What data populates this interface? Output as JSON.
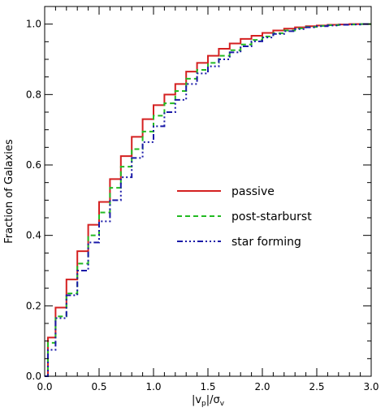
{
  "chart_data": {
    "type": "line",
    "title": "",
    "xlabel": "|v_p|/σ_v",
    "xlabel_parts": {
      "open_bar": "|v",
      "sub_p": "p",
      "close_bar": "|/σ",
      "sub_v": "v"
    },
    "ylabel": "Fraction of Galaxies",
    "xlim": [
      0.0,
      3.0
    ],
    "ylim": [
      0.0,
      1.05
    ],
    "x_ticks": [
      0.0,
      0.5,
      1.0,
      1.5,
      2.0,
      2.5,
      3.0
    ],
    "x_tick_labels": [
      "0.0",
      "0.5",
      "1.0",
      "1.5",
      "2.0",
      "2.5",
      "3.0"
    ],
    "y_ticks": [
      0.0,
      0.2,
      0.4,
      0.6,
      0.8,
      1.0
    ],
    "y_tick_labels": [
      "0.0",
      "0.2",
      "0.4",
      "0.6",
      "0.8",
      "1.0"
    ],
    "grid": false,
    "legend_position": "center-right",
    "step": true,
    "bin_edges": [
      0.0,
      0.03,
      0.1,
      0.2,
      0.3,
      0.4,
      0.5,
      0.6,
      0.7,
      0.8,
      0.9,
      1.0,
      1.1,
      1.2,
      1.3,
      1.4,
      1.5,
      1.6,
      1.7,
      1.8,
      1.9,
      2.0,
      2.1,
      2.2,
      2.3,
      2.4,
      2.5,
      2.6,
      2.7,
      2.8,
      2.9,
      3.0
    ],
    "series": [
      {
        "name": "passive",
        "color": "#d42020",
        "style": "solid",
        "values": [
          0.0,
          0.11,
          0.195,
          0.275,
          0.355,
          0.43,
          0.495,
          0.56,
          0.625,
          0.68,
          0.73,
          0.77,
          0.8,
          0.83,
          0.865,
          0.89,
          0.91,
          0.93,
          0.945,
          0.958,
          0.967,
          0.975,
          0.982,
          0.987,
          0.991,
          0.994,
          0.996,
          0.998,
          0.999,
          1.0,
          1.0
        ]
      },
      {
        "name": "post-starburst",
        "color": "#22bb22",
        "style": "dashed",
        "values": [
          0.0,
          0.095,
          0.17,
          0.235,
          0.32,
          0.4,
          0.465,
          0.535,
          0.595,
          0.645,
          0.695,
          0.74,
          0.775,
          0.81,
          0.845,
          0.87,
          0.89,
          0.91,
          0.926,
          0.942,
          0.955,
          0.965,
          0.974,
          0.982,
          0.988,
          0.992,
          0.995,
          0.997,
          0.998,
          0.999,
          1.0
        ]
      },
      {
        "name": "star forming",
        "color": "#1a1aa8",
        "style": "dash-dot",
        "values": [
          0.0,
          0.075,
          0.165,
          0.23,
          0.3,
          0.38,
          0.44,
          0.5,
          0.565,
          0.62,
          0.665,
          0.71,
          0.75,
          0.785,
          0.83,
          0.86,
          0.88,
          0.9,
          0.92,
          0.937,
          0.951,
          0.962,
          0.972,
          0.98,
          0.986,
          0.991,
          0.994,
          0.996,
          0.998,
          0.999,
          1.0
        ]
      }
    ]
  }
}
